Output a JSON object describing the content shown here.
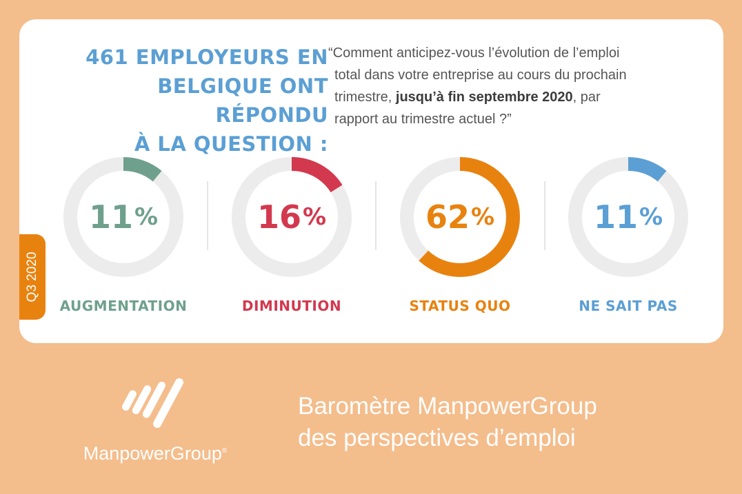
{
  "headline": {
    "lines": [
      "461 EMPLOYEURS EN",
      "BELGIQUE ONT RÉPONDU",
      "À LA QUESTION :"
    ]
  },
  "question": {
    "part1": "“Comment anticipez-vous l’évolution de l’emploi",
    "part2": "total dans votre entreprise au cours du prochain",
    "part3_pre": "trimestre, ",
    "part3_bold": "jusqu’à fin septembre 2020",
    "part3_post": ", par",
    "part4": "rapport au trimestre actuel ?”"
  },
  "period_tab": "Q3 2020",
  "chart_data": {
    "type": "donut",
    "items": [
      {
        "label": "AUGMENTATION",
        "value": 11,
        "display": "11",
        "unit": "%",
        "color": "#6fa08d"
      },
      {
        "label": "DIMINUTION",
        "value": 16,
        "display": "16",
        "unit": "%",
        "color": "#d2394f"
      },
      {
        "label": "STATUS QUO",
        "value": 62,
        "display": "62",
        "unit": "%",
        "color": "#e8820f"
      },
      {
        "label": "NE SAIT PAS",
        "value": 11,
        "display": "11",
        "unit": "%",
        "color": "#5b9fd4"
      }
    ],
    "track_color": "#ececec"
  },
  "footer": {
    "logo_name": "ManpowerGroup",
    "logo_mark": "®",
    "title_lines": [
      "Baromètre ManpowerGroup",
      "des perspectives d’emploi"
    ]
  }
}
